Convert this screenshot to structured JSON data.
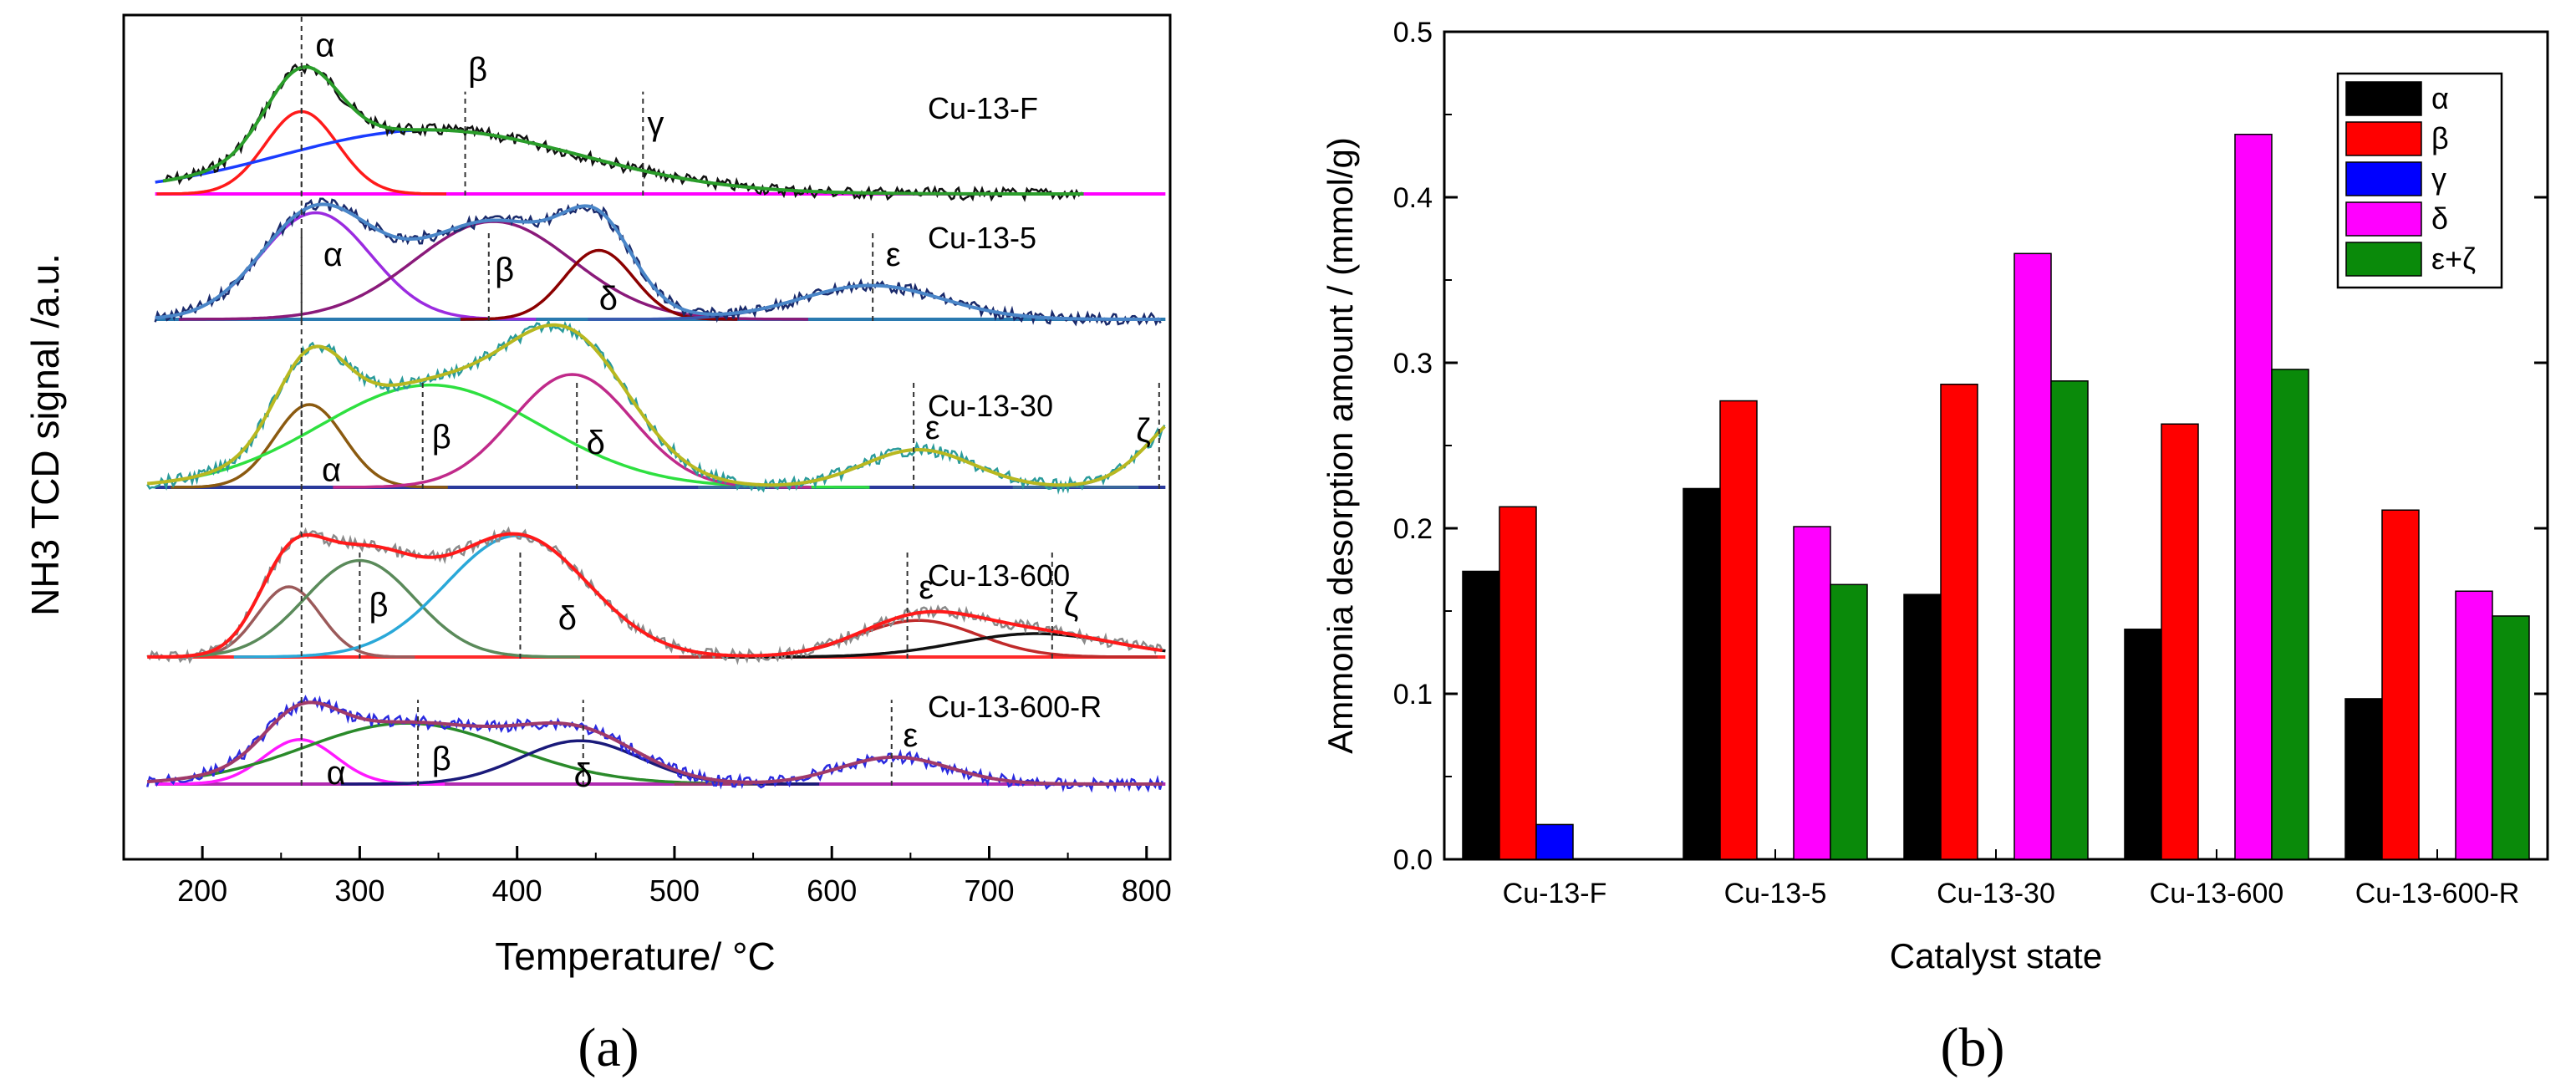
{
  "panels": {
    "a_caption": "(a)",
    "b_caption": "(b)"
  },
  "panel_a": {
    "xlabel": "Temperature/ °C",
    "ylabel": "NH3 TCD signal /a.u.",
    "xlim": [
      150,
      815
    ],
    "ticks": [
      "200",
      "300",
      "400",
      "500",
      "600",
      "700",
      "800"
    ],
    "tick_values": [
      200,
      300,
      400,
      500,
      600,
      700,
      800
    ],
    "vline_color": "#333333",
    "samples": [
      {
        "name": "Cu-13-F",
        "baseline_color": "#ff00ff",
        "data_color": "#111111",
        "envelope_color": "#2a9d2a",
        "peaks": [
          {
            "center": 263,
            "width": 23,
            "height": 0.58,
            "color": "#ff1a1a"
          },
          {
            "center": 345,
            "width": 95,
            "height": 0.45,
            "color": "#1a3cff"
          }
        ],
        "labels": [
          {
            "text": "α",
            "at": 278,
            "level": 1.05,
            "marker": 263
          },
          {
            "text": "β",
            "at": 375,
            "level": 0.88,
            "marker": 367
          },
          {
            "text": "γ",
            "at": 488,
            "level": 0.5,
            "marker": 480
          }
        ]
      },
      {
        "name": "Cu-13-5",
        "baseline_color": "#2a7ab0",
        "data_color": "#1a2a6b",
        "envelope_color": "#4a86c8",
        "peaks": [
          {
            "center": 272,
            "width": 35,
            "height": 0.85,
            "color": "#9b2be0"
          },
          {
            "center": 385,
            "width": 50,
            "height": 0.78,
            "color": "#8a1a7a"
          },
          {
            "center": 452,
            "width": 22,
            "height": 0.55,
            "color": "#8b0000"
          },
          {
            "center": 625,
            "width": 45,
            "height": 0.27,
            "color": "#3a5ab0"
          }
        ],
        "labels": [
          {
            "text": "α",
            "at": 283,
            "level": 0.52,
            "marker": 263
          },
          {
            "text": "β",
            "at": 392,
            "level": 0.4,
            "marker": 382
          },
          {
            "text": "δ",
            "at": 458,
            "level": 0.17,
            "marker": null
          },
          {
            "text": "ε",
            "at": 639,
            "level": 0.52,
            "marker": 626
          }
        ]
      },
      {
        "name": "Cu-13-30",
        "baseline_color": "#2a3a9b",
        "data_color": "#2a9b9b",
        "envelope_color": "#b8b820",
        "peaks": [
          {
            "center": 268,
            "width": 22,
            "height": 0.55,
            "color": "#8b5a10"
          },
          {
            "center": 345,
            "width": 70,
            "height": 0.68,
            "color": "#2ee040"
          },
          {
            "center": 435,
            "width": 38,
            "height": 0.75,
            "color": "#c02a8a"
          },
          {
            "center": 655,
            "width": 35,
            "height": 0.25,
            "color": "#3a6a9b"
          },
          {
            "center": 835,
            "width": 30,
            "height": 0.55,
            "color": "#3a6a9b"
          }
        ],
        "labels": [
          {
            "text": "α",
            "at": 282,
            "level": 0.12,
            "marker": 263
          },
          {
            "text": "β",
            "at": 352,
            "level": 0.34,
            "marker": 340
          },
          {
            "text": "δ",
            "at": 450,
            "level": 0.3,
            "marker": 438
          },
          {
            "text": "ε",
            "at": 664,
            "level": 0.4,
            "marker": 652
          },
          {
            "text": "ζ",
            "at": 798,
            "level": 0.38,
            "marker": 808
          }
        ]
      },
      {
        "name": "Cu-13-600",
        "baseline_color": "#ff2a2a",
        "data_color": "#8a8a8a",
        "envelope_color": "#ff1a1a",
        "peaks": [
          {
            "center": 255,
            "width": 20,
            "height": 0.48,
            "color": "#9b5a5a"
          },
          {
            "center": 300,
            "width": 35,
            "height": 0.66,
            "color": "#5a8a5a"
          },
          {
            "center": 400,
            "width": 45,
            "height": 0.83,
            "color": "#2aa8d8"
          },
          {
            "center": 655,
            "width": 38,
            "height": 0.25,
            "color": "#c02a2a"
          },
          {
            "center": 730,
            "width": 50,
            "height": 0.16,
            "color": "#111111"
          }
        ],
        "labels": [
          {
            "text": "β",
            "at": 312,
            "level": 0.36,
            "marker": 300
          },
          {
            "text": "δ",
            "at": 432,
            "level": 0.27,
            "marker": 402
          },
          {
            "text": "ε",
            "at": 660,
            "level": 0.48,
            "marker": 648
          },
          {
            "text": "ζ",
            "at": 752,
            "level": 0.36,
            "marker": 740
          }
        ]
      },
      {
        "name": "Cu-13-600-R",
        "baseline_color": "#b02ab0",
        "data_color": "#2a2ae0",
        "envelope_color": "#a03a6a",
        "peaks": [
          {
            "center": 262,
            "width": 23,
            "height": 0.38,
            "color": "#ff1aff"
          },
          {
            "center": 330,
            "width": 65,
            "height": 0.52,
            "color": "#2a8a2a"
          },
          {
            "center": 440,
            "width": 38,
            "height": 0.37,
            "color": "#1a1a7a"
          },
          {
            "center": 640,
            "width": 35,
            "height": 0.23,
            "color": "#9b3a6a"
          }
        ],
        "labels": [
          {
            "text": "α",
            "at": 285,
            "level": 0.1,
            "marker": 263
          },
          {
            "text": "β",
            "at": 352,
            "level": 0.22,
            "marker": 337
          },
          {
            "text": "δ",
            "at": 442,
            "level": 0.08,
            "marker": 442
          },
          {
            "text": "ε",
            "at": 650,
            "level": 0.42,
            "marker": 638
          }
        ]
      }
    ]
  },
  "chart_data": [
    {
      "type": "line",
      "title": "",
      "xlabel": "Temperature/ °C",
      "ylabel": "NH3 TCD signal /a.u.",
      "xlim": [
        150,
        815
      ],
      "series": [
        {
          "name": "Cu-13-F",
          "peak_labels": [
            "α",
            "β",
            "γ"
          ]
        },
        {
          "name": "Cu-13-5",
          "peak_labels": [
            "α",
            "β",
            "δ",
            "ε"
          ]
        },
        {
          "name": "Cu-13-30",
          "peak_labels": [
            "α",
            "β",
            "δ",
            "ε",
            "ζ"
          ]
        },
        {
          "name": "Cu-13-600",
          "peak_labels": [
            "β",
            "δ",
            "ε",
            "ζ"
          ]
        },
        {
          "name": "Cu-13-600-R",
          "peak_labels": [
            "α",
            "β",
            "δ",
            "ε"
          ]
        }
      ]
    },
    {
      "type": "bar",
      "title": "",
      "xlabel": "Catalyst state",
      "ylabel": "Ammonia desorption amount / (mmol/g)",
      "ylim": [
        0,
        0.5
      ],
      "yticks": [
        "0.0",
        "0.1",
        "0.2",
        "0.3",
        "0.4",
        "0.5"
      ],
      "ytick_values": [
        0,
        0.1,
        0.2,
        0.3,
        0.4,
        0.5
      ],
      "categories": [
        "Cu-13-F",
        "Cu-13-5",
        "Cu-13-30",
        "Cu-13-600",
        "Cu-13-600-R"
      ],
      "series": [
        {
          "name": "α",
          "color": "#000000",
          "values": [
            0.174,
            0.224,
            0.16,
            0.139,
            0.097
          ]
        },
        {
          "name": "β",
          "color": "#ff0000",
          "values": [
            0.213,
            0.277,
            0.287,
            0.263,
            0.211
          ]
        },
        {
          "name": "γ",
          "color": "#0000ff",
          "values": [
            0.021,
            null,
            null,
            null,
            null
          ]
        },
        {
          "name": "δ",
          "color": "#ff00ff",
          "values": [
            null,
            0.201,
            0.366,
            0.438,
            0.162
          ]
        },
        {
          "name": "ε+ζ",
          "color": "#0a8a0a",
          "values": [
            null,
            0.166,
            0.289,
            0.296,
            0.147
          ]
        }
      ],
      "legend": "top-right"
    }
  ]
}
